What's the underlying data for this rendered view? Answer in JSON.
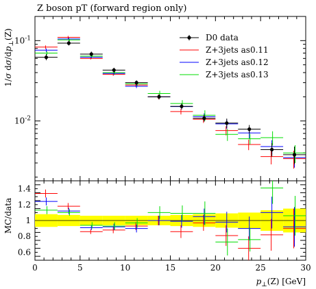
{
  "chart_data": {
    "type": "scatter",
    "title": "Z boson pT (forward region only)",
    "xlabel": "p⊥(Z) [GeV]",
    "ylabel_main": "1/σ dσ/dp⊥(Z)",
    "ylabel_ratio": "MC/data",
    "xlim": [
      0,
      30
    ],
    "ylim_main": [
      0.0018,
      0.2
    ],
    "yscale_main": "log",
    "ylim_ratio": [
      0.5,
      1.5
    ],
    "legend_position": "top-right",
    "x_ticks": [
      "0",
      "5",
      "10",
      "15",
      "20",
      "25",
      "30"
    ],
    "y_ticks_main": [
      "10^-1",
      "10^-2"
    ],
    "y_ticks_ratio": [
      "0.6",
      "0.8",
      "1",
      "1.2",
      "1.4"
    ],
    "bin_edges": [
      0,
      2.5,
      5,
      7.5,
      10,
      12.5,
      15,
      17.5,
      20,
      22.5,
      25,
      27.5,
      30
    ],
    "band_color": "#ffff00",
    "data": {
      "name": "D0 data",
      "color": "#000000",
      "x": [
        1.25,
        3.75,
        6.25,
        8.75,
        11.25,
        13.75,
        16.25,
        18.75,
        21.25,
        23.75,
        26.25,
        28.75
      ],
      "y": [
        0.062,
        0.093,
        0.068,
        0.043,
        0.03,
        0.02,
        0.0152,
        0.0108,
        0.0094,
        0.0079,
        0.0044,
        0.0038
      ],
      "err_low": [
        0.005,
        0.006,
        0.004,
        0.003,
        0.002,
        0.0015,
        0.0012,
        0.001,
        0.0012,
        0.0009,
        0.0008,
        0.0009
      ],
      "err_high": [
        0.006,
        0.007,
        0.005,
        0.003,
        0.002,
        0.0015,
        0.0013,
        0.0011,
        0.0013,
        0.001,
        0.0009,
        0.001
      ]
    },
    "series": [
      {
        "name": "Z+3jets as0.11",
        "color": "#ff0000",
        "values": [
          0.083,
          0.11,
          0.06,
          0.038,
          0.028,
          0.02,
          0.0131,
          0.0105,
          0.0076,
          0.0051,
          0.0036,
          0.0034
        ],
        "ratio": [
          1.34,
          1.18,
          0.86,
          0.88,
          0.93,
          1.0,
          0.86,
          0.97,
          0.81,
          0.65,
          0.82,
          0.9
        ],
        "ratio_err": [
          0.05,
          0.04,
          0.03,
          0.04,
          0.05,
          0.06,
          0.08,
          0.1,
          0.13,
          0.15,
          0.2,
          0.25
        ]
      },
      {
        "name": "Z+3jets as0.12",
        "color": "#0000ff",
        "values": [
          0.076,
          0.105,
          0.062,
          0.039,
          0.027,
          0.02,
          0.0151,
          0.0113,
          0.0092,
          0.0071,
          0.0048,
          0.0035
        ],
        "ratio": [
          1.24,
          1.12,
          0.91,
          0.92,
          0.9,
          1.0,
          0.99,
          1.05,
          0.98,
          0.9,
          1.1,
          0.92
        ],
        "ratio_err": [
          0.05,
          0.04,
          0.03,
          0.04,
          0.05,
          0.06,
          0.08,
          0.1,
          0.13,
          0.15,
          0.2,
          0.25
        ]
      },
      {
        "name": "Z+3jets as0.13",
        "color": "#00dd00",
        "values": [
          0.07,
          0.102,
          0.064,
          0.04,
          0.029,
          0.022,
          0.0165,
          0.0118,
          0.0068,
          0.006,
          0.0062,
          0.004
        ],
        "ratio": [
          1.13,
          1.1,
          0.94,
          0.93,
          0.97,
          1.1,
          1.09,
          1.09,
          0.73,
          0.76,
          1.41,
          1.06
        ],
        "ratio_err": [
          0.05,
          0.04,
          0.04,
          0.05,
          0.06,
          0.08,
          0.1,
          0.15,
          0.17,
          0.15,
          0.2,
          0.25
        ]
      }
    ],
    "data_ratio_err": [
      0.08,
      0.07,
      0.06,
      0.06,
      0.06,
      0.06,
      0.07,
      0.08,
      0.09,
      0.1,
      0.13,
      0.15
    ]
  }
}
